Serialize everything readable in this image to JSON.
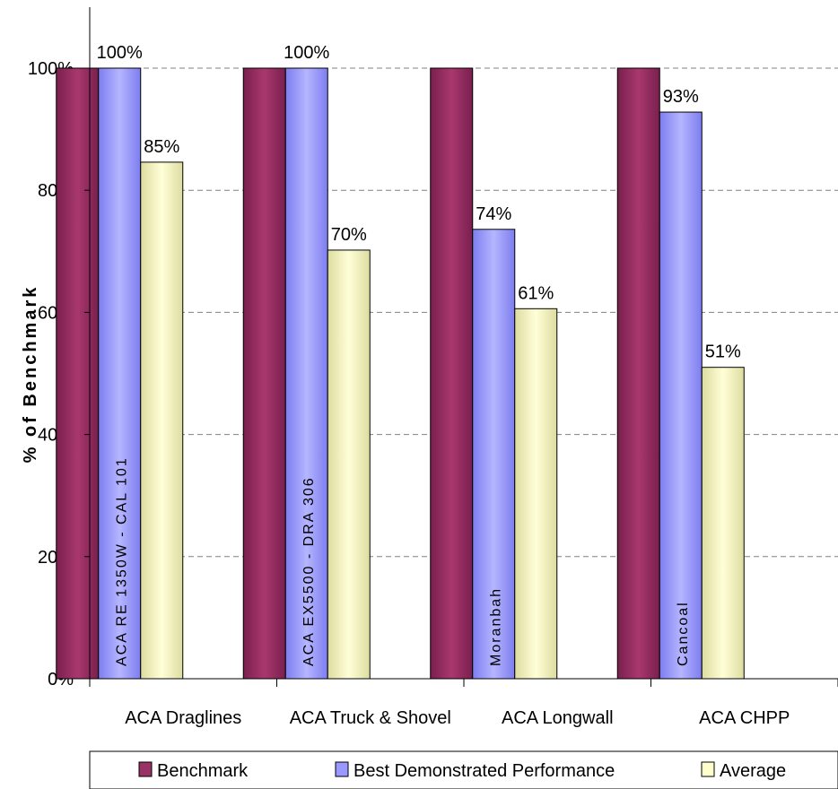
{
  "chart_data": {
    "type": "bar",
    "title": "",
    "xlabel": "",
    "ylabel": "% of Benchmark",
    "ylim": [
      0,
      1
    ],
    "y_tick_labels": [
      "0%",
      "20%",
      "40%",
      "60%",
      "80%",
      "100%"
    ],
    "y_ticks": [
      0,
      0.2,
      0.4,
      0.6,
      0.8,
      1.0
    ],
    "grid": "horizontal dashed",
    "legend_position": "bottom",
    "categories": [
      "ACA Draglines",
      "ACA Truck & Shovel",
      "ACA Longwall",
      "ACA CHPP"
    ],
    "series": [
      {
        "name": "Benchmark",
        "values": [
          1.0,
          1.0,
          1.0,
          1.0
        ],
        "color": "#993366",
        "labels": [
          "",
          "",
          "",
          ""
        ]
      },
      {
        "name": "Best Demonstrated Performance",
        "values": [
          1.0,
          1.0,
          0.736,
          0.928
        ],
        "color": "#9999ff",
        "labels": [
          "100%",
          "100%",
          "74%",
          "93%"
        ]
      },
      {
        "name": "Average",
        "values": [
          0.846,
          0.702,
          0.606,
          0.51
        ],
        "color": "#ffffcc",
        "labels": [
          "85%",
          "70%",
          "61%",
          "51%"
        ]
      }
    ],
    "bar_annotations": [
      "ACA RE 1350W - CAL 101",
      "ACA EX5500 - DRA 306",
      "Moranbah",
      "Cancoal"
    ]
  }
}
